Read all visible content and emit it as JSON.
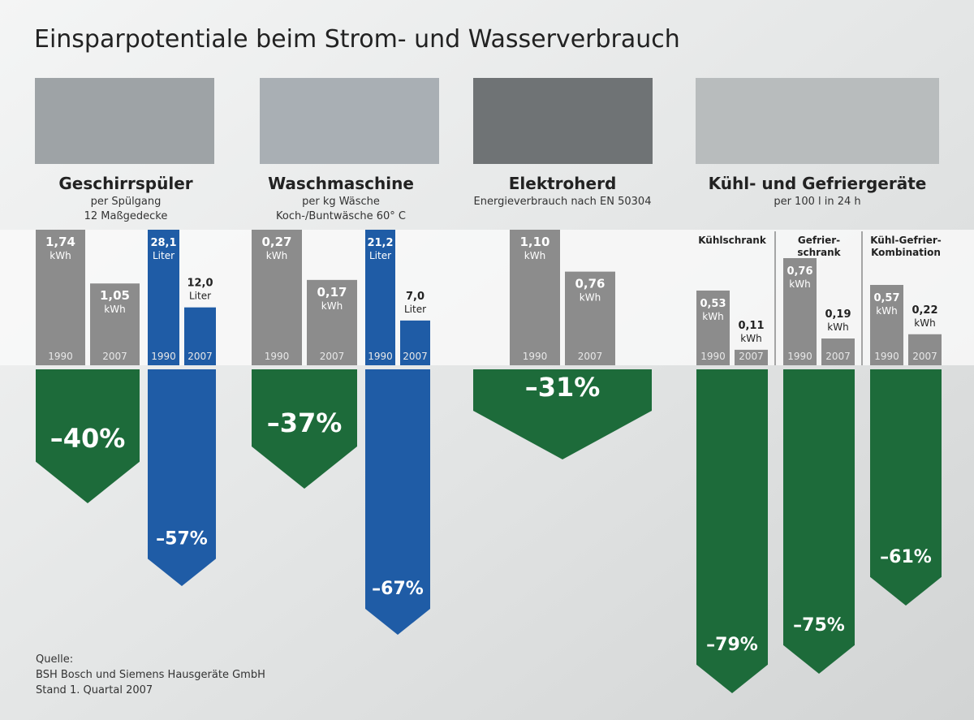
{
  "title": "Einsparpotentiale beim Strom- und Wasserverbrauch",
  "source": [
    "Quelle:",
    "BSH Bosch und Siemens Hausgeräte GmbH",
    "Stand 1. Quartal 2007"
  ],
  "chart_data": [
    {
      "type": "bar",
      "title": "Geschirrspüler",
      "subtitle": [
        "per Spülgang",
        "12 Maßgedecke"
      ],
      "categories": [
        "1990",
        "2007"
      ],
      "series": [
        {
          "unit": "kWh",
          "color": "#8c8c8c",
          "change_color": "#1d6b3a",
          "values": [
            1.74,
            1.05
          ],
          "value_labels": [
            "1,74",
            "1,05"
          ],
          "change": -40,
          "change_label": "–40%"
        },
        {
          "unit": "Liter",
          "color": "#1f5ca6",
          "change_color": "#1f5ca6",
          "values": [
            28.1,
            12.0
          ],
          "value_labels": [
            "28,1",
            "12,0"
          ],
          "change": -57,
          "change_label": "–57%"
        }
      ]
    },
    {
      "type": "bar",
      "title": "Waschmaschine",
      "subtitle": [
        "per kg Wäsche",
        "Koch-/Buntwäsche 60° C"
      ],
      "categories": [
        "1990",
        "2007"
      ],
      "series": [
        {
          "unit": "kWh",
          "color": "#8c8c8c",
          "change_color": "#1d6b3a",
          "values": [
            0.27,
            0.17
          ],
          "value_labels": [
            "0,27",
            "0,17"
          ],
          "change": -37,
          "change_label": "–37%"
        },
        {
          "unit": "Liter",
          "color": "#1f5ca6",
          "change_color": "#1f5ca6",
          "values": [
            21.2,
            7.0
          ],
          "value_labels": [
            "21,2",
            "7,0"
          ],
          "change": -67,
          "change_label": "–67%"
        }
      ]
    },
    {
      "type": "bar",
      "title": "Elektroherd",
      "subtitle": [
        "Energieverbrauch nach EN 50304"
      ],
      "categories": [
        "1990",
        "2007"
      ],
      "series": [
        {
          "unit": "kWh",
          "color": "#8c8c8c",
          "change_color": "#1d6b3a",
          "values": [
            1.1,
            0.76
          ],
          "value_labels": [
            "1,10",
            "0,76"
          ],
          "change": -31,
          "change_label": "–31%"
        }
      ]
    },
    {
      "type": "bar",
      "title": "Kühl- und Gefriergeräte",
      "subtitle": [
        "per 100 l in 24 h"
      ],
      "categories": [
        "1990",
        "2007"
      ],
      "series": [
        {
          "name": [
            "Kühlschrank"
          ],
          "unit": "kWh",
          "color": "#8c8c8c",
          "change_color": "#1d6b3a",
          "values": [
            0.53,
            0.11
          ],
          "value_labels": [
            "0,53",
            "0,11"
          ],
          "change": -79,
          "change_label": "–79%"
        },
        {
          "name": [
            "Gefrier-",
            "schrank"
          ],
          "unit": "kWh",
          "color": "#8c8c8c",
          "change_color": "#1d6b3a",
          "values": [
            0.76,
            0.19
          ],
          "value_labels": [
            "0,76",
            "0,19"
          ],
          "change": -75,
          "change_label": "–75%"
        },
        {
          "name": [
            "Kühl-Gefrier-",
            "Kombination"
          ],
          "unit": "kWh",
          "color": "#8c8c8c",
          "change_color": "#1d6b3a",
          "values": [
            0.57,
            0.22
          ],
          "value_labels": [
            "0,57",
            "0,22"
          ],
          "change": -61,
          "change_label": "–61%"
        }
      ]
    }
  ]
}
